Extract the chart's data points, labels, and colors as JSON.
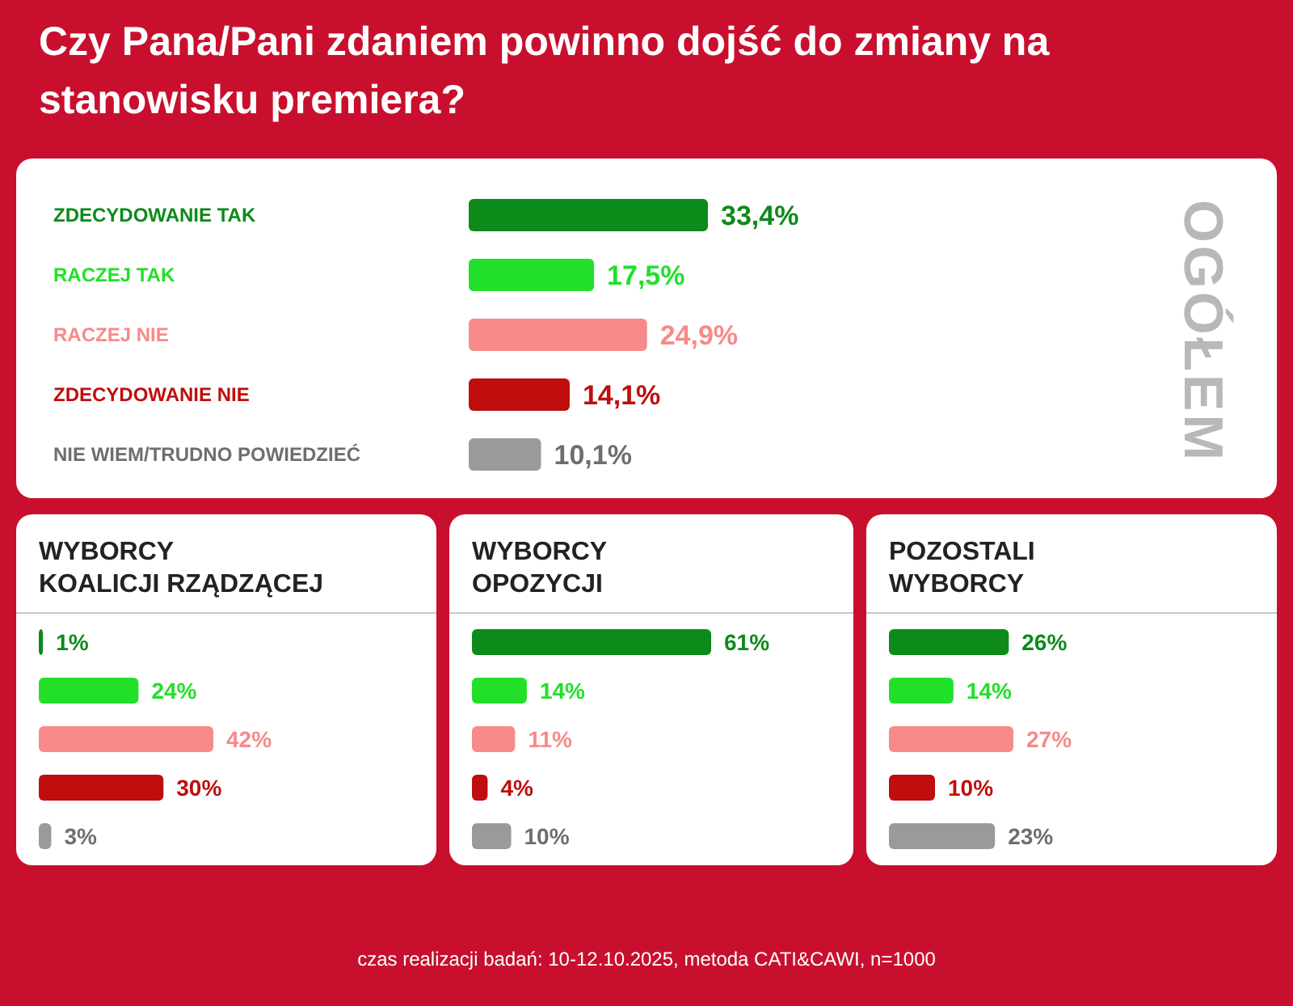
{
  "chart_data": [
    {
      "type": "bar",
      "orientation": "horizontal",
      "title": "Czy Pana/Pani zdaniem powinno dojść do zmiany na stanowisku premiera?",
      "annotations": [
        "OGÓŁEM"
      ],
      "categories": [
        "ZDECYDOWANIE TAK",
        "RACZEJ TAK",
        "RACZEJ NIE",
        "ZDECYDOWANIE NIE",
        "NIE WIEM/TRUDNO POWIEDZIEĆ"
      ],
      "values": [
        33.4,
        17.5,
        24.9,
        14.1,
        10.1
      ],
      "colors": [
        "#0c8a1a",
        "#22e02a",
        "#f78a8a",
        "#c00d0d",
        "#9a9a9a"
      ],
      "value_labels": [
        "33,4%",
        "17,5%",
        "24,9%",
        "14,1%",
        "10,1%"
      ]
    },
    {
      "type": "bar",
      "orientation": "horizontal",
      "title": "WYBORCY KOALICJI RZĄDZĄCEJ",
      "categories": [
        null,
        null,
        null,
        null,
        null
      ],
      "values": [
        1,
        24,
        42,
        30,
        3
      ],
      "colors": [
        "#0c8a1a",
        "#22e02a",
        "#f78a8a",
        "#c00d0d",
        "#9a9a9a"
      ],
      "value_labels": [
        "1%",
        "24%",
        "42%",
        "30%",
        "3%"
      ]
    },
    {
      "type": "bar",
      "orientation": "horizontal",
      "title": "WYBORCY OPOZYCJI",
      "categories": [
        null,
        null,
        null,
        null,
        null
      ],
      "values": [
        61,
        14,
        11,
        4,
        10
      ],
      "colors": [
        "#0c8a1a",
        "#22e02a",
        "#f78a8a",
        "#c00d0d",
        "#9a9a9a"
      ],
      "value_labels": [
        "61%",
        "14%",
        "11%",
        "4%",
        "10%"
      ]
    },
    {
      "type": "bar",
      "orientation": "horizontal",
      "title": "POZOSTALI WYBORCY",
      "categories": [
        null,
        null,
        null,
        null,
        null
      ],
      "values": [
        26,
        14,
        27,
        10,
        23
      ],
      "colors": [
        "#0c8a1a",
        "#22e02a",
        "#f78a8a",
        "#c00d0d",
        "#9a9a9a"
      ],
      "value_labels": [
        "26%",
        "14%",
        "27%",
        "10%",
        "23%"
      ],
      "annotations": [
        "czas realizacji badań: 10-12.10.2025, metoda CATI&CAWI, n=1000"
      ]
    }
  ]
}
